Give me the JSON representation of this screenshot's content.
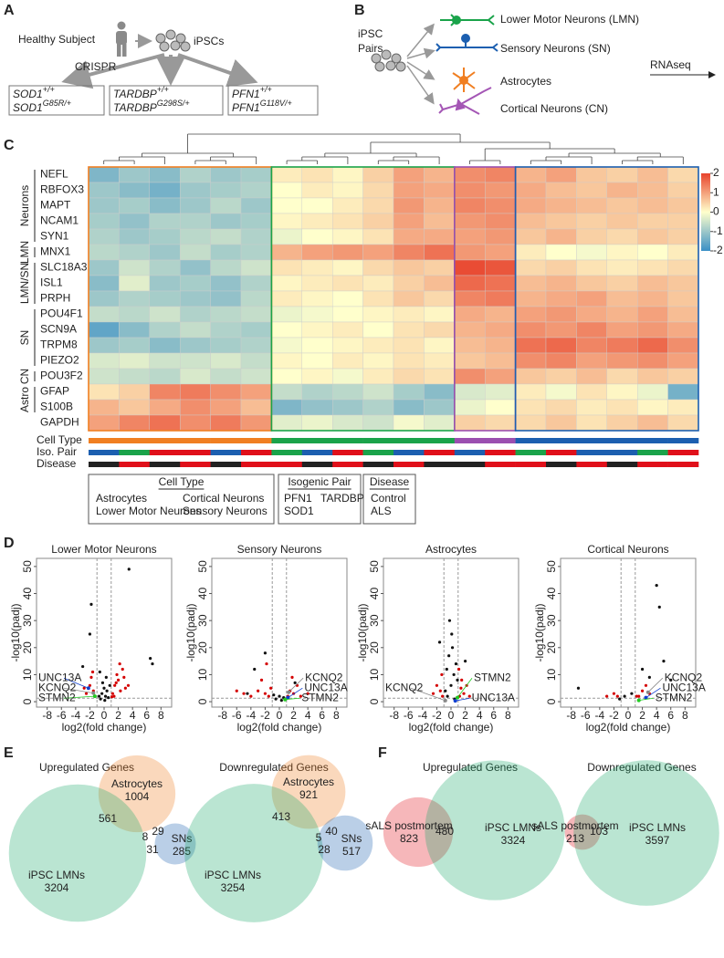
{
  "panel_a": {
    "label": "A",
    "subject": "Healthy Subject",
    "ipscs": "iPSCs",
    "crispr": "CRISPR",
    "boxes": [
      {
        "wt": {
          "gene": "SOD1",
          "allele": "+/+"
        },
        "mut": {
          "gene": "SOD1",
          "allele": "G85R/+"
        }
      },
      {
        "wt": {
          "gene": "TARDBP",
          "allele": "+/+"
        },
        "mut": {
          "gene": "TARDBP",
          "allele": "G298S/+"
        }
      },
      {
        "wt": {
          "gene": "PFN1",
          "allele": "+/+"
        },
        "mut": {
          "gene": "PFN1",
          "allele": "G118V/+"
        }
      }
    ]
  },
  "panel_b": {
    "label": "B",
    "source": [
      "iPSC",
      "Pairs"
    ],
    "rnaseq": "RNAseq",
    "cell_types": [
      {
        "name": "Lower Motor Neurons (LMN)",
        "color": "#1aa34a"
      },
      {
        "name": "Sensory Neurons (SN)",
        "color": "#1b8ec4"
      },
      {
        "name": "Astrocytes",
        "color": "#f07f22"
      },
      {
        "name": "Cortical Neurons (CN)",
        "color": "#a456b5"
      }
    ]
  },
  "panel_c": {
    "label": "C",
    "groups": [
      {
        "label": "Neurons",
        "genes": [
          "NEFL",
          "RBFOX3",
          "MAPT",
          "NCAM1",
          "SYN1"
        ]
      },
      {
        "label": "LMN",
        "genes": [
          "MNX1"
        ]
      },
      {
        "label": "LMN/SN",
        "genes": [
          "SLC18A3",
          "ISL1",
          "PRPH"
        ]
      },
      {
        "label": "SN",
        "genes": [
          "POU4F1",
          "SCN9A",
          "TRPM8",
          "PIEZO2"
        ]
      },
      {
        "label": "CN",
        "genes": [
          "POU3F2"
        ]
      },
      {
        "label": "Astro",
        "genes": [
          "GFAP",
          "S100B"
        ]
      },
      {
        "genes": [
          "GAPDH"
        ]
      }
    ],
    "values": [
      [
        -1.3,
        -1,
        -1.2,
        -0.8,
        -1,
        -0.9,
        0.2,
        0.3,
        0.1,
        0.5,
        1,
        0.8,
        1.2,
        1.3,
        0.8,
        1,
        0.6,
        0.5,
        0.7,
        0.4
      ],
      [
        -1,
        -1.2,
        -1.4,
        -1,
        -0.9,
        -0.8,
        0,
        0.2,
        0.1,
        0.4,
        1,
        0.9,
        1.2,
        1.1,
        0.9,
        0.7,
        0.6,
        0.8,
        0.7,
        0.5
      ],
      [
        -1,
        -0.9,
        -1.2,
        -1,
        -0.7,
        -1,
        0,
        0,
        0.2,
        0.4,
        1.1,
        0.8,
        1.3,
        1.2,
        0.9,
        0.8,
        0.7,
        0.6,
        0.7,
        0.6
      ],
      [
        -0.9,
        -1.1,
        -0.8,
        -0.8,
        -1,
        -0.9,
        0.1,
        0.2,
        0.3,
        0.5,
        1,
        0.7,
        1.1,
        1.2,
        0.7,
        0.6,
        0.5,
        0.6,
        0.5,
        0.5
      ],
      [
        -0.8,
        -1,
        -0.9,
        -0.7,
        -0.6,
        -0.8,
        -0.2,
        0,
        0.1,
        0.3,
        0.9,
        0.9,
        1,
        1.1,
        0.6,
        0.8,
        0.5,
        0.4,
        0.6,
        0.5
      ],
      [
        -0.7,
        -0.8,
        -1,
        -0.6,
        -0.9,
        -0.8,
        0.8,
        1,
        1.1,
        1,
        1.3,
        1.5,
        1.1,
        1,
        0.2,
        0,
        -0.1,
        0.1,
        0,
        0.2
      ],
      [
        -1,
        -0.5,
        -0.8,
        -1.1,
        -0.7,
        -0.5,
        0.3,
        0.2,
        0.1,
        0.4,
        0.6,
        0.5,
        1.9,
        1.8,
        0.4,
        0.5,
        0.3,
        0.2,
        0.3,
        0.4
      ],
      [
        -1.2,
        -0.3,
        -1,
        -0.9,
        -1.1,
        -0.8,
        0.1,
        0.2,
        0.3,
        0.2,
        0.5,
        0.7,
        1.6,
        1.5,
        0.7,
        0.8,
        0.6,
        0.5,
        0.7,
        0.6
      ],
      [
        -1,
        -0.8,
        -0.9,
        -1,
        -1.1,
        -0.7,
        0.2,
        0.1,
        0,
        0.3,
        0.6,
        0.4,
        1.3,
        1.4,
        0.8,
        0.9,
        1,
        0.7,
        0.8,
        0.6
      ],
      [
        -0.6,
        -0.7,
        -0.5,
        -0.8,
        -0.7,
        -0.6,
        -0.2,
        -0.1,
        0,
        0.1,
        0.2,
        0.1,
        0.9,
        0.8,
        1,
        1.1,
        0.9,
        0.8,
        1,
        0.7
      ],
      [
        -1.6,
        -1.2,
        -0.8,
        -0.6,
        -0.8,
        -0.9,
        0,
        0.1,
        0.2,
        0,
        0.3,
        0.4,
        0.8,
        0.9,
        1.2,
        1.1,
        1.3,
        1,
        1.1,
        0.9
      ],
      [
        -1,
        -0.9,
        -1.2,
        -1,
        -0.9,
        -0.8,
        -0.1,
        0,
        0.1,
        0.2,
        0.3,
        0.1,
        0.7,
        0.8,
        1.5,
        1.6,
        1.3,
        1.4,
        1.6,
        1.2
      ],
      [
        -0.4,
        -0.3,
        -0.5,
        -0.5,
        -0.4,
        -0.6,
        0.1,
        0,
        0.2,
        0.1,
        0.3,
        0.2,
        0.6,
        0.7,
        1.2,
        1.3,
        1,
        1.1,
        1.2,
        1
      ],
      [
        -0.5,
        -0.6,
        -0.7,
        -0.4,
        -0.6,
        -0.5,
        0,
        0.1,
        -0.1,
        0.2,
        0.4,
        0.3,
        1.2,
        1,
        0.6,
        0.5,
        0.7,
        0.4,
        0.6,
        0.5
      ],
      [
        0.3,
        0.5,
        1.3,
        1.4,
        1.2,
        1,
        -0.6,
        -0.8,
        -0.7,
        -0.5,
        -0.9,
        -1.2,
        -0.4,
        -0.3,
        0.2,
        -0.1,
        0.3,
        0.1,
        -0.2,
        -1.4
      ],
      [
        0.8,
        0.6,
        0.9,
        1.2,
        1,
        0.7,
        -1.3,
        -1.1,
        -1,
        -0.8,
        -1.2,
        -1,
        -0.2,
        0,
        0.3,
        0.4,
        0.2,
        0.3,
        0.1,
        0.2
      ],
      [
        1,
        1.3,
        1.5,
        1.2,
        1.4,
        1.1,
        -0.3,
        -0.2,
        -0.4,
        -0.5,
        -0.1,
        -0.3,
        0.5,
        0.4,
        0.4,
        0.6,
        0.3,
        0.5,
        0.7,
        0.4
      ]
    ],
    "colorbar": {
      "lim": [
        -2,
        2
      ],
      "ticks": [
        2,
        1,
        0,
        -1,
        -2
      ],
      "colors": [
        "#3a8fc6",
        "#ffffcc",
        "#e8432c"
      ]
    },
    "annotations": [
      {
        "label": "Cell Type",
        "values": [
          0,
          0,
          0,
          0,
          0,
          0,
          2,
          2,
          2,
          2,
          2,
          2,
          1,
          1,
          3,
          3,
          3,
          3,
          3,
          3
        ]
      },
      {
        "label": "Iso. Pair",
        "values": [
          1,
          2,
          0,
          0,
          1,
          0,
          2,
          1,
          0,
          2,
          1,
          0,
          1,
          0,
          2,
          0,
          1,
          1,
          2,
          0
        ]
      },
      {
        "label": "Disease",
        "values": [
          0,
          1,
          0,
          1,
          0,
          1,
          1,
          0,
          1,
          0,
          1,
          0,
          0,
          1,
          1,
          0,
          1,
          0,
          1,
          1
        ]
      }
    ],
    "legends": [
      {
        "title": "Cell Type",
        "items": [
          {
            "name": "Astrocytes",
            "color": "#f07f22"
          },
          {
            "name": "Cortical Neurons",
            "color": "#9b4fb0"
          },
          {
            "name": "Lower Motor Neurons",
            "color": "#1aa34a"
          },
          {
            "name": "Sensory Neurons",
            "color": "#1c5fb0"
          }
        ]
      },
      {
        "title": "Isogenic Pair",
        "items": [
          {
            "name": "PFN1",
            "color": "#e0101a"
          },
          {
            "name": "TARDBP",
            "color": "#1c5fb0"
          },
          {
            "name": "SOD1",
            "color": "#1aa34a"
          }
        ]
      },
      {
        "title": "Disease",
        "items": [
          {
            "name": "Control",
            "color": "#222222"
          },
          {
            "name": "ALS",
            "color": "#e0101a"
          }
        ]
      }
    ]
  },
  "panel_d": {
    "label": "D",
    "xlabel": "log2(fold change)",
    "ylabel": "-log10(padj)",
    "xlim": [
      -9.5,
      9.5
    ],
    "ylim": [
      -2,
      53
    ],
    "xticks": [
      -8,
      -6,
      -4,
      -2,
      0,
      2,
      4,
      6,
      8
    ],
    "yticks": [
      0,
      10,
      20,
      30,
      40,
      50
    ],
    "fc_threshold": [
      -1,
      1
    ],
    "padj_threshold": 1.3,
    "plots": [
      {
        "title": "Lower Motor Neurons",
        "point_sets": [
          {
            "color": "#d40000",
            "x": [
              -2.5,
              -2,
              -1.8,
              -1.5,
              -1.3,
              1.2,
              1.5,
              1.8,
              2,
              2.3,
              2.6,
              3,
              1.4,
              1.7,
              2.2,
              -2.8,
              -1.6,
              1.1,
              2.8,
              3.4
            ],
            "y": [
              3,
              6,
              9,
              4,
              2,
              3,
              6,
              10,
              8,
              4,
              12,
              5,
              2,
              7,
              14,
              5,
              11,
              1.8,
              9,
              6
            ]
          },
          {
            "color": "#111111",
            "x": [
              -0.5,
              -0.3,
              0,
              0.2,
              0.4,
              0.6,
              -0.7,
              0.8,
              -0.2,
              0.1,
              3.5,
              -1.8,
              -2,
              6.5,
              6.8,
              -3,
              0.3,
              -0.6
            ],
            "y": [
              1,
              3,
              5,
              2,
              4,
              1.5,
              2,
              6,
              7,
              0.5,
              49,
              36,
              25,
              16,
              14,
              13,
              9,
              11
            ]
          }
        ],
        "genes": [
          {
            "name": "UNC13A",
            "color": "#1040d0",
            "x": -2.2,
            "y": 5
          },
          {
            "name": "KCNQ2",
            "color": "#888888",
            "x": -1.5,
            "y": 3.2
          },
          {
            "name": "STMN2",
            "color": "#22cc22",
            "x": -1.3,
            "y": 2
          }
        ]
      },
      {
        "title": "Sensory Neurons",
        "point_sets": [
          {
            "color": "#d40000",
            "x": [
              -4,
              -3,
              -2.5,
              -2,
              -1.5,
              -1.2,
              1.2,
              1.5,
              2,
              2.5,
              3,
              -5,
              -6,
              4,
              -1.8,
              1.8
            ],
            "y": [
              2,
              4,
              8,
              3,
              2,
              5,
              2,
              4,
              3,
              6,
              2,
              3,
              4,
              3,
              14,
              9
            ]
          },
          {
            "color": "#111111",
            "x": [
              -0.5,
              0,
              0.3,
              0.6,
              -0.8,
              0.9,
              -3.5,
              -2,
              2.2,
              -4.5
            ],
            "y": [
              1,
              2,
              0.5,
              1.5,
              2.5,
              1,
              12,
              18,
              7,
              3
            ]
          }
        ],
        "genes": [
          {
            "name": "KCNQ2",
            "color": "#888888",
            "x": 1.3,
            "y": 3.5
          },
          {
            "name": "UNC13A",
            "color": "#1040d0",
            "x": 1.2,
            "y": 1.5
          },
          {
            "name": "STMN2",
            "color": "#22cc22",
            "x": 0.8,
            "y": 0.8
          }
        ]
      },
      {
        "title": "Astrocytes",
        "point_sets": [
          {
            "color": "#d40000",
            "x": [
              -1.2,
              -1.5,
              -2,
              1.2,
              1.4,
              1.8,
              2.2,
              -1.3,
              1.1,
              -2.5,
              2.6,
              1.5
            ],
            "y": [
              2,
              4,
              6,
              2,
              5,
              3,
              6,
              10,
              12,
              3,
              2,
              8
            ]
          },
          {
            "color": "#111111",
            "x": [
              -0.5,
              0,
              0.4,
              0.7,
              -0.3,
              0.2,
              -0.8,
              0.9,
              -0.6,
              0.5,
              -1.6,
              2,
              0.1,
              -0.2
            ],
            "y": [
              2,
              6,
              10,
              14,
              17,
              20,
              4,
              8,
              12,
              1,
              22,
              15,
              25,
              30
            ]
          }
        ],
        "genes": [
          {
            "name": "STMN2",
            "color": "#22cc22",
            "x": 0.9,
            "y": 1.5
          },
          {
            "name": "KCNQ2",
            "color": "#888888",
            "x": -0.8,
            "y": 0.4
          },
          {
            "name": "UNC13A",
            "color": "#1040d0",
            "x": 0.6,
            "y": 0.3
          }
        ]
      },
      {
        "title": "Cortical Neurons",
        "point_sets": [
          {
            "color": "#d40000",
            "x": [
              -1.5,
              -2,
              1.5,
              2,
              3,
              -3,
              2.5,
              1.2
            ],
            "y": [
              2,
              3,
              2,
              4,
              3,
              2,
              6,
              2
            ]
          },
          {
            "color": "#111111",
            "x": [
              4,
              4.4,
              5,
              -7,
              3,
              -0.5,
              0.5,
              6,
              2,
              -1.2
            ],
            "y": [
              43,
              35,
              15,
              5,
              9,
              2,
              3,
              8,
              12,
              1
            ]
          }
        ],
        "genes": [
          {
            "name": "KCNQ2",
            "color": "#888888",
            "x": 2.8,
            "y": 3.5
          },
          {
            "name": "UNC13A",
            "color": "#1040d0",
            "x": 2.5,
            "y": 1.5
          },
          {
            "name": "STMN2",
            "color": "#22cc22",
            "x": 1.5,
            "y": 0.5
          }
        ]
      }
    ]
  },
  "panel_e": {
    "label": "E",
    "venns": [
      {
        "title": "Upregulated Genes",
        "sets": [
          {
            "name": "Astrocytes",
            "count": 1004,
            "color": "#f07f22"
          },
          {
            "name": "iPSC LMNs",
            "count": 3204,
            "color": "#1aa86a"
          },
          {
            "name": "SNs",
            "count": 285,
            "color": "#1c5fb0"
          }
        ],
        "overlaps": [
          561,
          29,
          8,
          31
        ]
      },
      {
        "title": "Downregulated Genes",
        "sets": [
          {
            "name": "Astrocytes",
            "count": 921,
            "color": "#f07f22"
          },
          {
            "name": "iPSC LMNs",
            "count": 3254,
            "color": "#1aa86a"
          },
          {
            "name": "SNs",
            "count": 517,
            "color": "#1c5fb0"
          }
        ],
        "overlaps": [
          413,
          40,
          5,
          28
        ]
      }
    ]
  },
  "panel_f": {
    "label": "F",
    "venns": [
      {
        "title": "Upregulated Genes",
        "sets": [
          {
            "name": "sALS postmortem",
            "count": 823,
            "color": "#e0101a"
          },
          {
            "name": "iPSC LMNs",
            "count": 3324,
            "color": "#1aa86a"
          }
        ],
        "overlaps": [
          480
        ]
      },
      {
        "title": "Downregulated Genes",
        "sets": [
          {
            "name": "sALS postmortem",
            "count": 213,
            "color": "#e0101a"
          },
          {
            "name": "iPSC LMNs",
            "count": 3597,
            "color": "#1aa86a"
          }
        ],
        "overlaps": [
          103
        ]
      }
    ]
  }
}
